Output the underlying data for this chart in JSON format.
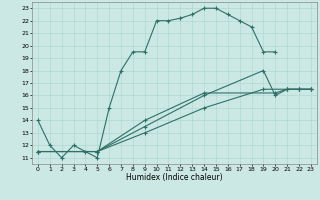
{
  "xlabel": "Humidex (Indice chaleur)",
  "bg_color": "#cce8e4",
  "line_color": "#2d7068",
  "grid_color": "#b0d8d0",
  "xlim": [
    -0.5,
    23.5
  ],
  "ylim": [
    10.5,
    23.5
  ],
  "xticks": [
    0,
    1,
    2,
    3,
    4,
    5,
    6,
    7,
    8,
    9,
    10,
    11,
    12,
    13,
    14,
    15,
    16,
    17,
    18,
    19,
    20,
    21,
    22,
    23
  ],
  "yticks": [
    11,
    12,
    13,
    14,
    15,
    16,
    17,
    18,
    19,
    20,
    21,
    22,
    23
  ],
  "line1": {
    "x": [
      0,
      1,
      2,
      3,
      4,
      5,
      6,
      7,
      8,
      9,
      10,
      11,
      12,
      13,
      14,
      15,
      16,
      17,
      18,
      19,
      20
    ],
    "y": [
      14,
      12,
      11,
      12,
      11.5,
      11,
      15,
      18,
      19.5,
      19.5,
      22,
      22,
      22.2,
      22.5,
      23,
      23,
      22.5,
      22,
      21.5,
      19.5,
      19.5
    ]
  },
  "line2": {
    "x": [
      0,
      5,
      9,
      14,
      19,
      21,
      22,
      23
    ],
    "y": [
      11.5,
      11.5,
      13.0,
      15.0,
      16.5,
      16.5,
      16.5,
      16.5
    ]
  },
  "line3": {
    "x": [
      0,
      5,
      9,
      14,
      19,
      20,
      21,
      22,
      23
    ],
    "y": [
      11.5,
      11.5,
      13.5,
      16.0,
      18.0,
      16.0,
      16.5,
      16.5,
      16.5
    ]
  },
  "line4": {
    "x": [
      0,
      5,
      9,
      14,
      20,
      21,
      22,
      23
    ],
    "y": [
      11.5,
      11.5,
      14.0,
      16.2,
      16.2,
      16.5,
      16.5,
      16.5
    ]
  }
}
